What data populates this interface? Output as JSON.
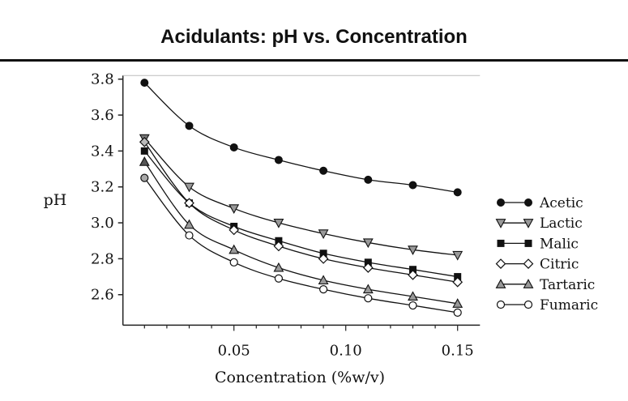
{
  "chart_data": {
    "type": "line",
    "title": "Acidulants:  pH vs. Concentration",
    "xlabel": "Concentration (%w/v)",
    "ylabel": "pH",
    "xlim": [
      0,
      0.16
    ],
    "ylim": [
      2.43,
      3.82
    ],
    "xticks": [
      0.05,
      0.1,
      0.15
    ],
    "xtick_labels": [
      "0.05",
      "0.10",
      "0.15"
    ],
    "xminor_step": 0.01,
    "yticks": [
      2.6,
      2.8,
      3.0,
      3.2,
      3.4,
      3.6,
      3.8
    ],
    "ytick_labels": [
      "2.6",
      "2.8",
      "3.0",
      "3.2",
      "3.4",
      "3.6",
      "3.8"
    ],
    "grid": false,
    "legend_placement": "right",
    "x": [
      0.01,
      0.03,
      0.05,
      0.07,
      0.09,
      0.11,
      0.13,
      0.15
    ],
    "series": [
      {
        "name": "Acetic",
        "marker": "filled-circle",
        "values": [
          3.78,
          3.54,
          3.42,
          3.35,
          3.29,
          3.24,
          3.21,
          3.17
        ]
      },
      {
        "name": "Lactic",
        "marker": "down-triangle",
        "values": [
          3.47,
          3.2,
          3.08,
          3.0,
          2.94,
          2.89,
          2.85,
          2.82
        ]
      },
      {
        "name": "Malic",
        "marker": "filled-square",
        "values": [
          3.4,
          3.11,
          2.98,
          2.9,
          2.83,
          2.78,
          2.74,
          2.7
        ]
      },
      {
        "name": "Citric",
        "marker": "open-diamond",
        "values": [
          3.45,
          3.11,
          2.96,
          2.87,
          2.8,
          2.75,
          2.71,
          2.67
        ]
      },
      {
        "name": "Tartaric",
        "marker": "up-triangle",
        "values": [
          3.34,
          2.99,
          2.85,
          2.75,
          2.68,
          2.63,
          2.59,
          2.55
        ]
      },
      {
        "name": "Fumaric",
        "marker": "open-circle",
        "values": [
          3.25,
          2.93,
          2.78,
          2.69,
          2.63,
          2.58,
          2.54,
          2.5
        ]
      }
    ]
  }
}
